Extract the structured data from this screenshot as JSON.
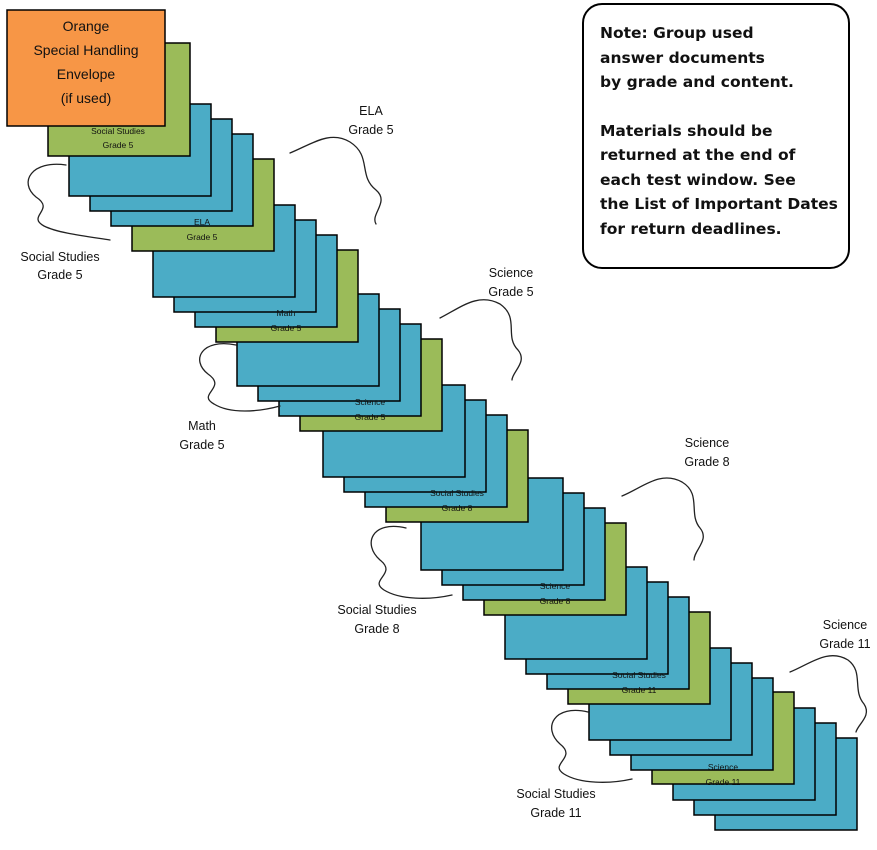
{
  "colors": {
    "sheet_blue": "#4BACC6",
    "sheet_green": "#9BBB59",
    "envelope_orange": "#F79646",
    "outline": "#000000"
  },
  "envelope": {
    "line1": "Orange",
    "line2": "Special Handling",
    "line3": "Envelope",
    "line4": "(if used)"
  },
  "note": {
    "line1": "Note: Group used",
    "line2": "answer documents",
    "line3": "by grade and content.",
    "line4": "Materials should be",
    "line5": "returned at the end of",
    "line6": "each test window. See",
    "line7": "the List of Important Dates",
    "line8": "for return deadlines."
  },
  "groups": [
    {
      "content": "Social Studies",
      "grade": "Grade 5",
      "sheet_content": "Social Studies",
      "sheet_grade": "Grade 5",
      "callout_content": "Social Studies",
      "callout_grade": "Grade 5"
    },
    {
      "content": "ELA",
      "grade": "Grade 5",
      "sheet_content": "ELA",
      "sheet_grade": "Grade 5",
      "callout_content": "ELA",
      "callout_grade": "Grade 5"
    },
    {
      "content": "Math",
      "grade": "Grade 5",
      "sheet_content": "Math",
      "sheet_grade": "Grade 5",
      "callout_content": "Math",
      "callout_grade": "Grade 5"
    },
    {
      "content": "Science",
      "grade": "Grade 5",
      "sheet_content": "Science",
      "sheet_grade": "Grade 5",
      "callout_content": "Science",
      "callout_grade": "Grade 5"
    },
    {
      "content": "Social Studies",
      "grade": "Grade 8",
      "sheet_content": "Social Studies",
      "sheet_grade": "Grade 8",
      "callout_content": "Social Studies",
      "callout_grade": "Grade 8"
    },
    {
      "content": "Science",
      "grade": "Grade 8",
      "sheet_content": "Science",
      "sheet_grade": "Grade 8",
      "callout_content": "Science",
      "callout_grade": "Grade 8"
    },
    {
      "content": "Social Studies",
      "grade": "Grade 11",
      "sheet_content": "Social Studies",
      "sheet_grade": "Grade 11",
      "callout_content": "Social Studies",
      "callout_grade": "Grade 11"
    },
    {
      "content": "Science",
      "grade": "Grade 11",
      "sheet_content": "Science",
      "sheet_grade": "Grade 11",
      "callout_content": "Science",
      "callout_grade": "Grade 11"
    }
  ]
}
